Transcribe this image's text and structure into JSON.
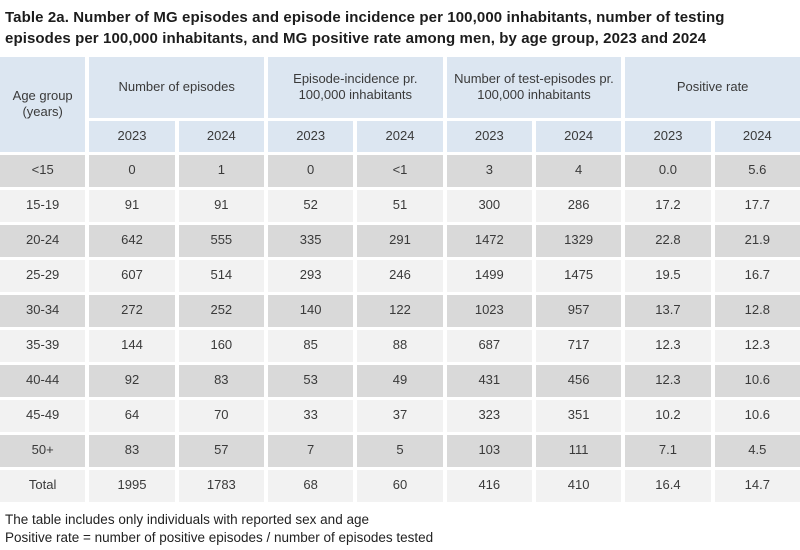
{
  "title_lines": [
    "Table 2a. Number of MG episodes and episode incidence per 100,000 inhabitants, number of testing",
    "episodes per 100,000 inhabitants, and MG positive rate among men, by age group, 2023 and 2024"
  ],
  "colors": {
    "header_blue": "#dce6f1",
    "row_dark": "#d9d9d9",
    "row_light": "#f2f2f2",
    "text": "#3a3a3a"
  },
  "table": {
    "corner_header": "Age group (years)",
    "groups": [
      "Number of episodes",
      "Episode-incidence pr. 100,000 inhabitants",
      "Number of test-episodes pr. 100,000 inhabitants",
      "Positive rate"
    ],
    "year_columns": [
      "2023",
      "2024",
      "2023",
      "2024",
      "2023",
      "2024",
      "2023",
      "2024"
    ],
    "rows": [
      {
        "age": "<15",
        "values": [
          "0",
          "1",
          "0",
          "<1",
          "3",
          "4",
          "0.0",
          "5.6"
        ]
      },
      {
        "age": "15-19",
        "values": [
          "91",
          "91",
          "52",
          "51",
          "300",
          "286",
          "17.2",
          "17.7"
        ]
      },
      {
        "age": "20-24",
        "values": [
          "642",
          "555",
          "335",
          "291",
          "1472",
          "1329",
          "22.8",
          "21.9"
        ]
      },
      {
        "age": "25-29",
        "values": [
          "607",
          "514",
          "293",
          "246",
          "1499",
          "1475",
          "19.5",
          "16.7"
        ]
      },
      {
        "age": "30-34",
        "values": [
          "272",
          "252",
          "140",
          "122",
          "1023",
          "957",
          "13.7",
          "12.8"
        ]
      },
      {
        "age": "35-39",
        "values": [
          "144",
          "160",
          "85",
          "88",
          "687",
          "717",
          "12.3",
          "12.3"
        ]
      },
      {
        "age": "40-44",
        "values": [
          "92",
          "83",
          "53",
          "49",
          "431",
          "456",
          "12.3",
          "10.6"
        ]
      },
      {
        "age": "45-49",
        "values": [
          "64",
          "70",
          "33",
          "37",
          "323",
          "351",
          "10.2",
          "10.6"
        ]
      },
      {
        "age": "50+",
        "values": [
          "83",
          "57",
          "7",
          "5",
          "103",
          "111",
          "7.1",
          "4.5"
        ]
      },
      {
        "age": "Total",
        "values": [
          "1995",
          "1783",
          "68",
          "60",
          "416",
          "410",
          "16.4",
          "14.7"
        ]
      }
    ]
  },
  "footnotes": [
    "The table includes only individuals with reported sex and age",
    "Positive rate = number of positive episodes / number of episodes tested"
  ],
  "chart_data": {
    "type": "table",
    "title": "Table 2a. Number of MG episodes and episode incidence per 100,000 inhabitants, number of testing episodes per 100,000 inhabitants, and MG positive rate among men, by age group, 2023 and 2024",
    "categories": [
      "<15",
      "15-19",
      "20-24",
      "25-29",
      "30-34",
      "35-39",
      "40-44",
      "45-49",
      "50+",
      "Total"
    ],
    "series": [
      {
        "name": "Number of episodes 2023",
        "values": [
          "0",
          "91",
          "642",
          "607",
          "272",
          "144",
          "92",
          "64",
          "83",
          "1995"
        ]
      },
      {
        "name": "Number of episodes 2024",
        "values": [
          "1",
          "91",
          "555",
          "514",
          "252",
          "160",
          "83",
          "70",
          "57",
          "1783"
        ]
      },
      {
        "name": "Episode-incidence pr. 100,000 inhabitants 2023",
        "values": [
          "0",
          "52",
          "335",
          "293",
          "140",
          "85",
          "53",
          "33",
          "7",
          "68"
        ]
      },
      {
        "name": "Episode-incidence pr. 100,000 inhabitants 2024",
        "values": [
          "<1",
          "51",
          "291",
          "246",
          "122",
          "88",
          "49",
          "37",
          "5",
          "60"
        ]
      },
      {
        "name": "Number of test-episodes pr. 100,000 inhabitants 2023",
        "values": [
          "3",
          "300",
          "1472",
          "1499",
          "1023",
          "687",
          "431",
          "323",
          "103",
          "416"
        ]
      },
      {
        "name": "Number of test-episodes pr. 100,000 inhabitants 2024",
        "values": [
          "4",
          "286",
          "1329",
          "1475",
          "957",
          "717",
          "456",
          "351",
          "111",
          "410"
        ]
      },
      {
        "name": "Positive rate 2023",
        "values": [
          "0.0",
          "17.2",
          "22.8",
          "19.5",
          "13.7",
          "12.3",
          "12.3",
          "10.2",
          "7.1",
          "16.4"
        ]
      },
      {
        "name": "Positive rate 2024",
        "values": [
          "5.6",
          "17.7",
          "21.9",
          "16.7",
          "12.8",
          "12.3",
          "10.6",
          "10.6",
          "4.5",
          "14.7"
        ]
      }
    ]
  }
}
